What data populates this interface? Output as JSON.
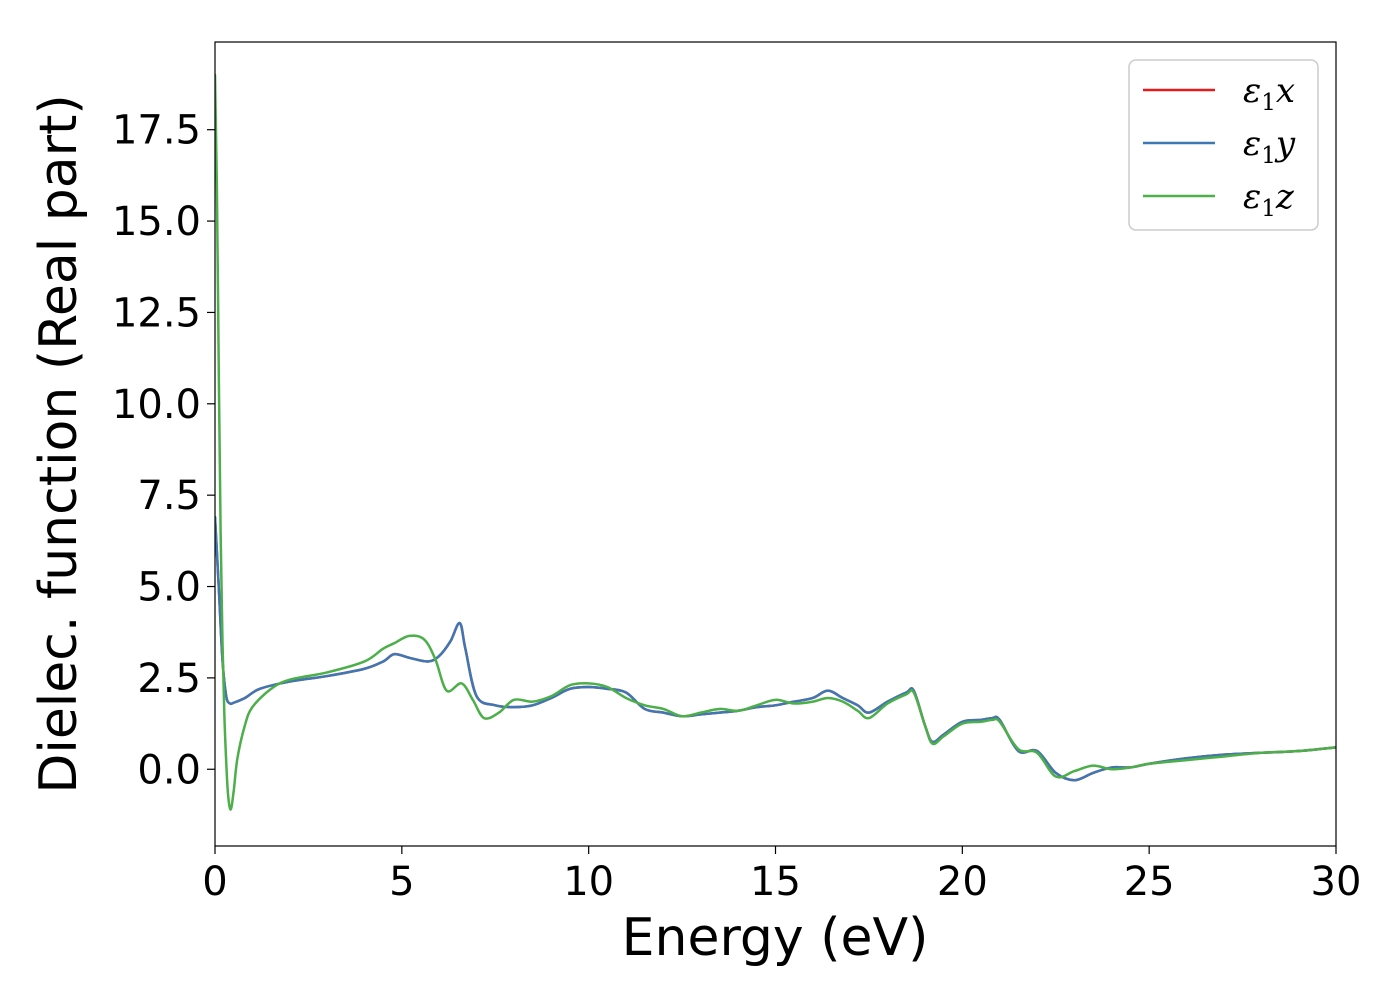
{
  "chart_data": {
    "type": "line",
    "title": "",
    "xlabel": "Energy (eV)",
    "ylabel": "Dielec. function (Real part)",
    "xlim": [
      0,
      30
    ],
    "ylim": [
      -2.1,
      19.9
    ],
    "xticks": [
      0,
      5,
      10,
      15,
      20,
      25,
      30
    ],
    "xtick_labels": [
      "0",
      "5",
      "10",
      "15",
      "20",
      "25",
      "30"
    ],
    "yticks": [
      0.0,
      2.5,
      5.0,
      7.5,
      10.0,
      12.5,
      15.0,
      17.5
    ],
    "ytick_labels": [
      "0.0",
      "2.5",
      "5.0",
      "7.5",
      "10.0",
      "12.5",
      "15.0",
      "17.5"
    ],
    "grid": false,
    "legend": "top-right",
    "series": [
      {
        "name": "ε1x",
        "legend_base": "ε",
        "legend_sub": "1",
        "legend_suffix": "x",
        "color": "#e41a1c",
        "x": [
          0,
          0.1,
          0.2,
          0.3,
          0.4,
          0.5,
          0.8,
          1.2,
          2,
          3,
          4,
          4.5,
          4.8,
          5.2,
          5.7,
          6.0,
          6.3,
          6.55,
          6.7,
          7.0,
          7.5,
          8.0,
          8.5,
          9.0,
          9.5,
          10.0,
          10.5,
          11.0,
          11.5,
          12.0,
          12.5,
          13.0,
          13.5,
          14.0,
          14.5,
          15.0,
          15.5,
          16.0,
          16.4,
          16.8,
          17.2,
          17.5,
          18.0,
          18.5,
          18.7,
          19.0,
          19.2,
          19.5,
          20.0,
          20.5,
          20.8,
          21.0,
          21.5,
          22.0,
          22.5,
          23.0,
          23.5,
          24.0,
          24.5,
          25.0,
          26.0,
          27.0,
          28.0,
          29.0,
          30.0
        ],
        "y": [
          6.9,
          5.0,
          3.0,
          2.0,
          1.8,
          1.82,
          1.95,
          2.2,
          2.4,
          2.55,
          2.75,
          2.95,
          3.15,
          3.05,
          2.95,
          3.1,
          3.5,
          4.0,
          3.3,
          2.0,
          1.75,
          1.7,
          1.75,
          1.95,
          2.2,
          2.25,
          2.2,
          2.1,
          1.65,
          1.55,
          1.45,
          1.5,
          1.55,
          1.6,
          1.7,
          1.75,
          1.85,
          1.95,
          2.15,
          1.95,
          1.75,
          1.55,
          1.85,
          2.1,
          2.15,
          1.2,
          0.75,
          0.95,
          1.3,
          1.35,
          1.4,
          1.35,
          0.5,
          0.5,
          -0.1,
          -0.3,
          -0.1,
          0.05,
          0.05,
          0.15,
          0.3,
          0.4,
          0.45,
          0.5,
          0.6
        ]
      },
      {
        "name": "ε1y",
        "legend_base": "ε",
        "legend_sub": "1",
        "legend_suffix": "y",
        "color": "#3e78b4",
        "x": [
          0,
          0.1,
          0.2,
          0.3,
          0.4,
          0.5,
          0.8,
          1.2,
          2,
          3,
          4,
          4.5,
          4.8,
          5.2,
          5.7,
          6.0,
          6.3,
          6.55,
          6.7,
          7.0,
          7.5,
          8.0,
          8.5,
          9.0,
          9.5,
          10.0,
          10.5,
          11.0,
          11.5,
          12.0,
          12.5,
          13.0,
          13.5,
          14.0,
          14.5,
          15.0,
          15.5,
          16.0,
          16.4,
          16.8,
          17.2,
          17.5,
          18.0,
          18.5,
          18.7,
          19.0,
          19.2,
          19.5,
          20.0,
          20.5,
          20.8,
          21.0,
          21.5,
          22.0,
          22.5,
          23.0,
          23.5,
          24.0,
          24.5,
          25.0,
          26.0,
          27.0,
          28.0,
          29.0,
          30.0
        ],
        "y": [
          6.9,
          5.0,
          3.0,
          2.0,
          1.8,
          1.82,
          1.95,
          2.2,
          2.4,
          2.55,
          2.75,
          2.95,
          3.15,
          3.05,
          2.95,
          3.1,
          3.5,
          4.0,
          3.3,
          2.0,
          1.75,
          1.7,
          1.75,
          1.95,
          2.2,
          2.25,
          2.2,
          2.1,
          1.65,
          1.55,
          1.45,
          1.5,
          1.55,
          1.6,
          1.7,
          1.75,
          1.85,
          1.95,
          2.15,
          1.95,
          1.75,
          1.55,
          1.85,
          2.1,
          2.15,
          1.2,
          0.75,
          0.95,
          1.3,
          1.35,
          1.4,
          1.35,
          0.5,
          0.5,
          -0.1,
          -0.3,
          -0.1,
          0.05,
          0.05,
          0.15,
          0.3,
          0.4,
          0.45,
          0.5,
          0.6
        ]
      },
      {
        "name": "ε1z",
        "legend_base": "ε",
        "legend_sub": "1",
        "legend_suffix": "z",
        "color": "#4daf4a",
        "x": [
          0,
          0.05,
          0.1,
          0.15,
          0.2,
          0.25,
          0.3,
          0.35,
          0.42,
          0.5,
          0.6,
          0.8,
          1.0,
          1.5,
          2,
          3,
          4,
          4.5,
          4.8,
          5.2,
          5.6,
          5.9,
          6.2,
          6.6,
          6.9,
          7.2,
          7.6,
          8.0,
          8.5,
          9.0,
          9.5,
          10.0,
          10.5,
          11.0,
          11.5,
          12.0,
          12.5,
          13.0,
          13.5,
          14.0,
          14.5,
          15.0,
          15.5,
          16.0,
          16.4,
          16.8,
          17.2,
          17.5,
          18.0,
          18.5,
          18.7,
          19.0,
          19.2,
          19.5,
          20.0,
          20.5,
          20.8,
          21.0,
          21.5,
          22.0,
          22.5,
          23.0,
          23.5,
          24.0,
          24.5,
          25.0,
          26.0,
          27.0,
          28.0,
          29.0,
          30.0
        ],
        "y": [
          19.0,
          16.0,
          11.0,
          6.5,
          3.5,
          1.5,
          0.2,
          -0.7,
          -1.1,
          -0.6,
          0.3,
          1.2,
          1.7,
          2.2,
          2.45,
          2.65,
          2.95,
          3.3,
          3.45,
          3.65,
          3.55,
          3.0,
          2.15,
          2.35,
          1.9,
          1.4,
          1.55,
          1.9,
          1.85,
          2.0,
          2.3,
          2.35,
          2.25,
          1.95,
          1.75,
          1.65,
          1.45,
          1.55,
          1.65,
          1.6,
          1.75,
          1.9,
          1.8,
          1.85,
          1.95,
          1.85,
          1.6,
          1.4,
          1.8,
          2.05,
          2.1,
          1.2,
          0.7,
          0.9,
          1.25,
          1.3,
          1.35,
          1.3,
          0.55,
          0.45,
          -0.2,
          -0.05,
          0.1,
          0.0,
          0.05,
          0.15,
          0.25,
          0.35,
          0.45,
          0.5,
          0.6
        ]
      }
    ]
  }
}
